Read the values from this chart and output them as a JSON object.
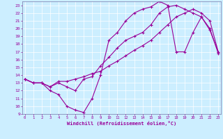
{
  "xlabel": "Windchill (Refroidissement éolien,°C)",
  "bg_color": "#cceeff",
  "line_color": "#990099",
  "xlim": [
    -0.3,
    23.3
  ],
  "ylim": [
    9,
    23.5
  ],
  "xticks": [
    0,
    1,
    2,
    3,
    4,
    5,
    6,
    7,
    8,
    9,
    10,
    11,
    12,
    13,
    14,
    15,
    16,
    17,
    18,
    19,
    20,
    21,
    22,
    23
  ],
  "yticks": [
    9,
    10,
    11,
    12,
    13,
    14,
    15,
    16,
    17,
    18,
    19,
    20,
    21,
    22,
    23
  ],
  "line1_x": [
    0,
    1,
    2,
    3,
    4,
    5,
    6,
    7,
    8,
    9,
    10,
    11,
    12,
    13,
    14,
    15,
    16,
    17,
    18,
    19,
    20,
    21,
    22,
    23
  ],
  "line1_y": [
    13.5,
    13.0,
    13.0,
    12.0,
    11.5,
    10.0,
    9.5,
    9.2,
    11.0,
    14.0,
    18.5,
    19.5,
    21.0,
    22.0,
    22.5,
    22.8,
    23.5,
    23.0,
    17.0,
    17.0,
    19.5,
    21.5,
    19.8,
    17.0
  ],
  "line2_x": [
    0,
    1,
    2,
    3,
    4,
    5,
    6,
    7,
    8,
    9,
    10,
    11,
    12,
    13,
    14,
    15,
    16,
    17,
    18,
    19,
    20,
    21,
    22,
    23
  ],
  "line2_y": [
    13.5,
    13.0,
    13.0,
    12.5,
    13.0,
    12.5,
    12.0,
    13.5,
    13.8,
    15.2,
    16.3,
    17.5,
    18.5,
    19.0,
    19.5,
    20.5,
    22.0,
    22.8,
    23.0,
    22.5,
    22.0,
    21.5,
    20.0,
    16.8
  ],
  "line3_x": [
    0,
    1,
    2,
    3,
    4,
    5,
    6,
    7,
    8,
    9,
    10,
    11,
    12,
    13,
    14,
    15,
    16,
    17,
    18,
    19,
    20,
    21,
    22,
    23
  ],
  "line3_y": [
    13.5,
    13.0,
    13.0,
    12.5,
    13.2,
    13.2,
    13.5,
    13.8,
    14.2,
    14.5,
    15.2,
    15.8,
    16.5,
    17.2,
    17.8,
    18.5,
    19.5,
    20.5,
    21.5,
    22.0,
    22.5,
    22.0,
    21.0,
    17.0
  ]
}
